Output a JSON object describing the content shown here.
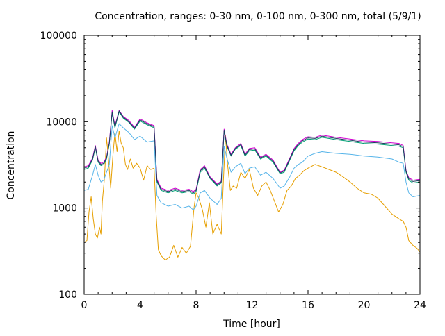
{
  "chart_data": {
    "type": "line",
    "title": "Concentration, ranges: 0-30 nm, 0-100 nm, 0-300 nm, total (5/9/1)",
    "xlabel": "Time [hour]",
    "ylabel": "Concentration",
    "xlim": [
      0,
      24
    ],
    "ylim": [
      100,
      100000
    ],
    "yscale": "log",
    "grid": false,
    "x_ticks": [
      0,
      4,
      8,
      12,
      16,
      20,
      24
    ],
    "x_tick_labels": [
      "0",
      "4",
      "8",
      "12",
      "16",
      "20",
      "24"
    ],
    "y_ticks": [
      100,
      1000,
      10000,
      100000
    ],
    "y_tick_labels": [
      "100",
      "1000",
      "10000",
      "100000"
    ],
    "series": [
      {
        "color": "#e69f00",
        "x": [
          0,
          0.2,
          0.35,
          0.5,
          0.65,
          0.8,
          0.95,
          1.1,
          1.2,
          1.3,
          1.45,
          1.6,
          1.75,
          1.9,
          2.05,
          2.2,
          2.35,
          2.5,
          2.65,
          2.8,
          2.95,
          3.1,
          3.3,
          3.5,
          3.75,
          4.0,
          4.25,
          4.5,
          4.75,
          5.0,
          5.15,
          5.3,
          5.5,
          5.8,
          6.1,
          6.4,
          6.7,
          7.0,
          7.3,
          7.6,
          7.85,
          8.0,
          8.2,
          8.45,
          8.7,
          8.95,
          9.2,
          9.5,
          9.8,
          9.95,
          10.1,
          10.25,
          10.45,
          10.65,
          10.9,
          11.2,
          11.5,
          11.8,
          12.1,
          12.4,
          12.7,
          13.0,
          13.3,
          13.6,
          13.9,
          14.2,
          14.5,
          14.8,
          15.1,
          15.4,
          15.7,
          16.0,
          16.5,
          17.0,
          17.5,
          18.0,
          18.5,
          19.0,
          19.5,
          20.0,
          20.5,
          21.0,
          21.5,
          22.0,
          22.5,
          22.8,
          23.0,
          23.2,
          23.5,
          23.8,
          24.0
        ],
        "y": [
          400,
          420,
          900,
          1350,
          750,
          500,
          450,
          600,
          500,
          1200,
          2200,
          6500,
          3500,
          1700,
          4000,
          7500,
          4500,
          7800,
          5600,
          5000,
          3200,
          2800,
          3700,
          2900,
          3300,
          2900,
          2100,
          3100,
          2800,
          2900,
          820,
          330,
          280,
          250,
          270,
          370,
          270,
          350,
          300,
          360,
          1000,
          1500,
          1300,
          950,
          600,
          1150,
          500,
          650,
          500,
          2000,
          7000,
          3200,
          1600,
          1800,
          1700,
          2600,
          2200,
          2800,
          1700,
          1400,
          1800,
          2000,
          1600,
          1200,
          900,
          1100,
          1600,
          1800,
          2200,
          2400,
          2700,
          2900,
          3200,
          3000,
          2800,
          2600,
          2300,
          2000,
          1700,
          1500,
          1450,
          1300,
          1050,
          850,
          750,
          700,
          600,
          420,
          370,
          340,
          310
        ]
      },
      {
        "color": "#56b4e9",
        "x": [
          0,
          0.3,
          0.6,
          0.8,
          1.0,
          1.2,
          1.4,
          1.6,
          1.8,
          2.0,
          2.2,
          2.5,
          2.8,
          3.2,
          3.6,
          4.0,
          4.5,
          5.0,
          5.2,
          5.5,
          6.0,
          6.5,
          7.0,
          7.5,
          7.8,
          8.0,
          8.3,
          8.6,
          9.0,
          9.5,
          9.8,
          10.0,
          10.2,
          10.5,
          10.8,
          11.2,
          11.5,
          11.8,
          12.2,
          12.6,
          13.0,
          13.5,
          14.0,
          14.3,
          14.7,
          15.0,
          15.3,
          15.6,
          16.0,
          16.5,
          17.0,
          18.0,
          19.0,
          20.0,
          21.0,
          22.0,
          22.5,
          22.8,
          23.0,
          23.2,
          23.5,
          24.0
        ],
        "y": [
          1600,
          1650,
          2400,
          3200,
          2400,
          2000,
          2100,
          2600,
          3200,
          9000,
          6500,
          9500,
          8500,
          7500,
          6200,
          6800,
          5800,
          6000,
          1400,
          1150,
          1050,
          1100,
          1000,
          1050,
          950,
          1050,
          1500,
          1600,
          1300,
          1100,
          1300,
          5200,
          3800,
          2600,
          3000,
          3300,
          2500,
          2900,
          3000,
          2400,
          2600,
          2200,
          1700,
          1800,
          2300,
          2900,
          3200,
          3400,
          4000,
          4300,
          4500,
          4300,
          4200,
          4000,
          3900,
          3700,
          3400,
          3300,
          2000,
          1500,
          1350,
          1400
        ]
      },
      {
        "color": "#009e73",
        "x": [
          0,
          0.3,
          0.6,
          0.8,
          1.0,
          1.2,
          1.4,
          1.6,
          1.8,
          2.0,
          2.2,
          2.5,
          2.8,
          3.2,
          3.6,
          4.0,
          4.5,
          5.0,
          5.2,
          5.5,
          6.0,
          6.5,
          7.0,
          7.5,
          7.8,
          8.0,
          8.3,
          8.6,
          9.0,
          9.5,
          9.8,
          10.0,
          10.2,
          10.5,
          10.8,
          11.2,
          11.5,
          11.8,
          12.2,
          12.6,
          13.0,
          13.5,
          14.0,
          14.3,
          14.7,
          15.0,
          15.3,
          15.6,
          16.0,
          16.5,
          17.0,
          18.0,
          19.0,
          20.0,
          21.0,
          22.0,
          22.5,
          22.8,
          23.0,
          23.2,
          23.5,
          24.0
        ],
        "y": [
          2800,
          2900,
          3600,
          5000,
          3400,
          3100,
          3200,
          3700,
          5500,
          12500,
          8500,
          13000,
          11000,
          9800,
          8200,
          10200,
          9200,
          8500,
          2000,
          1600,
          1500,
          1600,
          1500,
          1550,
          1450,
          1550,
          2600,
          2900,
          2200,
          1800,
          1950,
          7800,
          5200,
          4000,
          4800,
          5300,
          4000,
          4600,
          4700,
          3700,
          4000,
          3400,
          2500,
          2600,
          3600,
          4600,
          5300,
          5800,
          6300,
          6200,
          6600,
          6200,
          5900,
          5600,
          5500,
          5300,
          5200,
          5000,
          2600,
          2100,
          1950,
          2000
        ]
      },
      {
        "color": "#d000d0",
        "x": [
          0,
          0.3,
          0.6,
          0.8,
          1.0,
          1.2,
          1.4,
          1.6,
          1.8,
          2.0,
          2.2,
          2.5,
          2.8,
          3.2,
          3.6,
          4.0,
          4.5,
          5.0,
          5.2,
          5.5,
          6.0,
          6.5,
          7.0,
          7.5,
          7.8,
          8.0,
          8.3,
          8.6,
          9.0,
          9.5,
          9.8,
          10.0,
          10.2,
          10.5,
          10.8,
          11.2,
          11.5,
          11.8,
          12.2,
          12.6,
          13.0,
          13.5,
          14.0,
          14.3,
          14.7,
          15.0,
          15.3,
          15.6,
          16.0,
          16.5,
          17.0,
          18.0,
          19.0,
          20.0,
          21.0,
          22.0,
          22.5,
          22.8,
          23.0,
          23.2,
          23.5,
          24.0
        ],
        "y": [
          3000,
          3100,
          3800,
          5300,
          3600,
          3300,
          3400,
          3900,
          5800,
          13500,
          9000,
          13500,
          11500,
          10300,
          8600,
          10800,
          9700,
          9000,
          2150,
          1700,
          1600,
          1700,
          1600,
          1650,
          1550,
          1650,
          2800,
          3100,
          2300,
          1900,
          2050,
          8200,
          5500,
          4200,
          5000,
          5600,
          4200,
          4900,
          5000,
          3900,
          4200,
          3600,
          2600,
          2750,
          3800,
          4900,
          5600,
          6200,
          6700,
          6600,
          7000,
          6600,
          6300,
          6000,
          5900,
          5700,
          5600,
          5300,
          2750,
          2250,
          2100,
          2150
        ]
      },
      {
        "color": "#1e3a5f",
        "x": [
          0,
          0.3,
          0.6,
          0.8,
          1.0,
          1.2,
          1.4,
          1.6,
          1.8,
          2.0,
          2.2,
          2.5,
          2.8,
          3.2,
          3.6,
          4.0,
          4.5,
          5.0,
          5.2,
          5.5,
          6.0,
          6.5,
          7.0,
          7.5,
          7.8,
          8.0,
          8.3,
          8.6,
          9.0,
          9.5,
          9.8,
          10.0,
          10.2,
          10.5,
          10.8,
          11.2,
          11.5,
          11.8,
          12.2,
          12.6,
          13.0,
          13.5,
          14.0,
          14.3,
          14.7,
          15.0,
          15.3,
          15.6,
          16.0,
          16.5,
          17.0,
          18.0,
          19.0,
          20.0,
          21.0,
          22.0,
          22.5,
          22.8,
          23.0,
          23.2,
          23.5,
          24.0
        ],
        "y": [
          2900,
          3000,
          3700,
          5150,
          3500,
          3200,
          3300,
          3800,
          5650,
          13000,
          8750,
          13300,
          11300,
          10000,
          8400,
          10500,
          9450,
          8750,
          2080,
          1650,
          1550,
          1650,
          1550,
          1600,
          1500,
          1600,
          2700,
          3000,
          2250,
          1850,
          2000,
          8000,
          5350,
          4100,
          4900,
          5450,
          4100,
          4750,
          4850,
          3800,
          4100,
          3500,
          2550,
          2680,
          3700,
          4750,
          5450,
          6000,
          6500,
          6400,
          6800,
          6400,
          6100,
          5800,
          5700,
          5500,
          5400,
          5150,
          2680,
          2180,
          2030,
          2080
        ]
      }
    ]
  }
}
